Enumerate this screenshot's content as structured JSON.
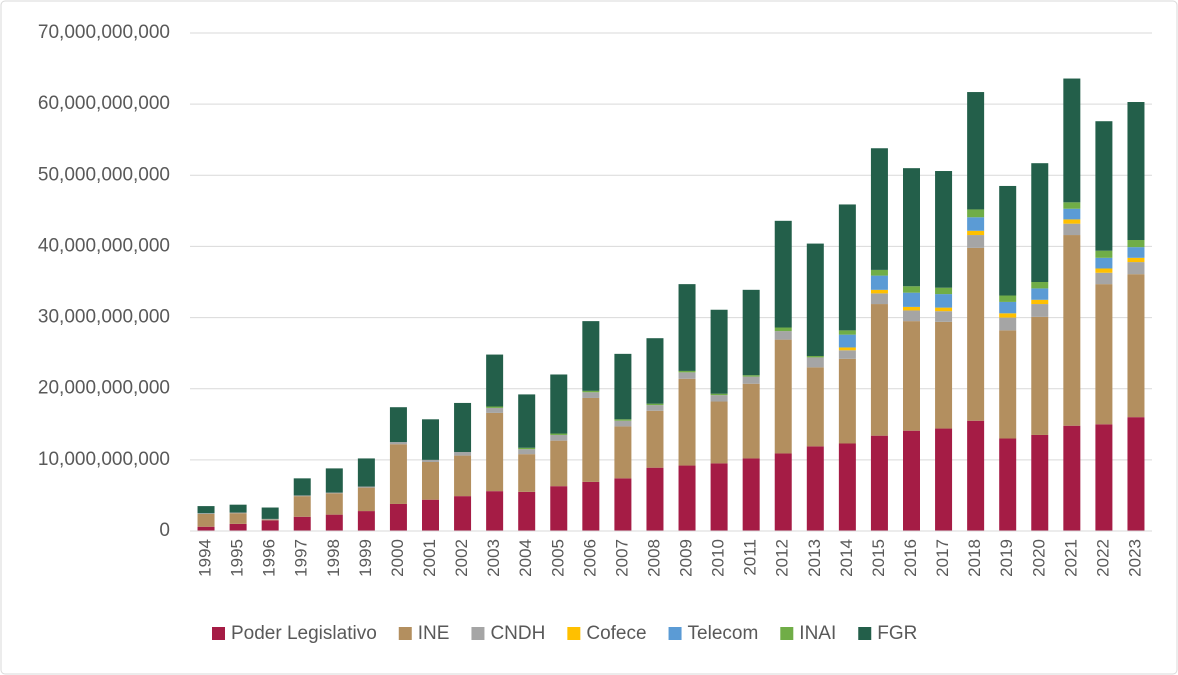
{
  "chart_data": {
    "type": "stacked_bar",
    "categories": [
      "1994",
      "1995",
      "1996",
      "1997",
      "1998",
      "1999",
      "2000",
      "2001",
      "2002",
      "2003",
      "2004",
      "2005",
      "2006",
      "2007",
      "2008",
      "2009",
      "2010",
      "2011",
      "2012",
      "2013",
      "2014",
      "2015",
      "2016",
      "2017",
      "2018",
      "2019",
      "2020",
      "2021",
      "2022",
      "2023"
    ],
    "series": [
      {
        "name": "Poder Legislativo",
        "color": "#a51c45",
        "values": [
          600000000.0,
          1000000000.0,
          1500000000.0,
          2000000000.0,
          2300000000.0,
          2800000000.0,
          3800000000.0,
          4400000000.0,
          4900000000.0,
          5600000000.0,
          5500000000.0,
          6300000000.0,
          6900000000.0,
          7400000000.0,
          8900000000.0,
          9200000000.0,
          9500000000.0,
          10200000000.0,
          10900000000.0,
          11900000000.0,
          12300000000.0,
          13400000000.0,
          14100000000.0,
          14400000000.0,
          15500000000.0,
          13000000000.0,
          13500000000.0,
          14800000000.0,
          15000000000.0,
          16000000000.0
        ]
      },
      {
        "name": "INE",
        "color": "#b38f5f",
        "values": [
          1800000000.0,
          1500000000.0,
          100000000.0,
          2900000000.0,
          3000000000.0,
          3300000000.0,
          8400000000.0,
          5300000000.0,
          5700000000.0,
          11000000000.0,
          5300000000.0,
          6400000000.0,
          11800000000.0,
          7300000000.0,
          8000000000.0,
          12200000000.0,
          8700000000.0,
          10500000000.0,
          16000000000.0,
          11100000000.0,
          11900000000.0,
          18500000000.0,
          15400000000.0,
          15000000000.0,
          24300000000.0,
          15200000000.0,
          16600000000.0,
          26800000000.0,
          19700000000.0,
          20100000000.0
        ]
      },
      {
        "name": "CNDH",
        "color": "#a5a5a5",
        "values": [
          100000000.0,
          100000000.0,
          100000000.0,
          100000000.0,
          100000000.0,
          150000000.0,
          300000000.0,
          300000000.0,
          500000000.0,
          700000000.0,
          700000000.0,
          800000000.0,
          800000000.0,
          800000000.0,
          800000000.0,
          900000000.0,
          900000000.0,
          1000000000.0,
          1200000000.0,
          1400000000.0,
          1200000000.0,
          1500000000.0,
          1500000000.0,
          1500000000.0,
          1800000000.0,
          1800000000.0,
          1800000000.0,
          1600000000.0,
          1600000000.0,
          1700000000.0
        ]
      },
      {
        "name": "Cofece",
        "color": "#ffc000",
        "values": [
          0,
          0,
          0,
          0,
          0,
          0,
          0,
          0,
          0,
          0,
          0,
          0,
          0,
          0,
          0,
          0,
          0,
          0,
          0,
          0,
          400000000.0,
          500000000.0,
          500000000.0,
          500000000.0,
          600000000.0,
          600000000.0,
          600000000.0,
          600000000.0,
          600000000.0,
          600000000.0
        ]
      },
      {
        "name": "Telecom",
        "color": "#5b9bd5",
        "values": [
          0,
          0,
          0,
          0,
          0,
          0,
          0,
          0,
          0,
          0,
          0,
          0,
          0,
          0,
          0,
          0,
          0,
          0,
          0,
          0,
          1800000000.0,
          2000000000.0,
          2000000000.0,
          1900000000.0,
          1900000000.0,
          1600000000.0,
          1600000000.0,
          1500000000.0,
          1500000000.0,
          1500000000.0
        ]
      },
      {
        "name": "INAI",
        "color": "#70ad47",
        "values": [
          0,
          0,
          0,
          0,
          0,
          0,
          0,
          0,
          0,
          200000000.0,
          200000000.0,
          200000000.0,
          200000000.0,
          200000000.0,
          200000000.0,
          200000000.0,
          200000000.0,
          200000000.0,
          500000000.0,
          200000000.0,
          600000000.0,
          800000000.0,
          900000000.0,
          900000000.0,
          1100000000.0,
          900000000.0,
          900000000.0,
          900000000.0,
          1000000000.0,
          1000000000.0
        ]
      },
      {
        "name": "FGR",
        "color": "#235f4a",
        "values": [
          1000000000.0,
          1100000000.0,
          1600000000.0,
          2400000000.0,
          3400000000.0,
          3950000000.0,
          4900000000.0,
          5700000000.0,
          6900000000.0,
          7300000000.0,
          7500000000.0,
          8300000000.0,
          9800000000.0,
          9200000000.0,
          9200000000.0,
          12200000000.0,
          11800000000.0,
          12000000000.0,
          15000000000.0,
          15800000000.0,
          17700000000.0,
          17100000000.0,
          16600000000.0,
          16400000000.0,
          16500000000.0,
          15400000000.0,
          16700000000.0,
          17400000000.0,
          18200000000.0,
          19400000000.0
        ]
      }
    ],
    "ylim": [
      0,
      70000000000.0
    ],
    "yticks": [
      0,
      {
        "value": 10000000000.0,
        "label": "10,000,000,000"
      },
      {
        "value": 20000000000.0,
        "label": "20,000,000,000"
      },
      {
        "value": 30000000000.0,
        "label": "30,000,000,000"
      },
      {
        "value": 40000000000.0,
        "label": "40,000,000,000"
      },
      {
        "value": 50000000000.0,
        "label": "50,000,000,000"
      },
      {
        "value": 60000000000.0,
        "label": "60,000,000,000"
      },
      {
        "value": 70000000000.0,
        "label": "70,000,000,000"
      }
    ],
    "grid": true,
    "legend": "bottom"
  }
}
